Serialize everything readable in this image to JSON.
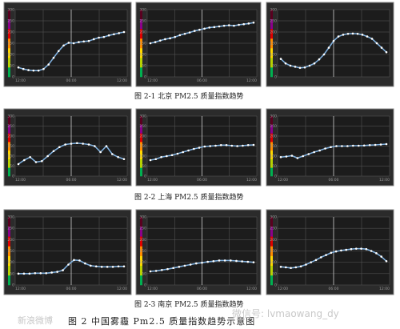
{
  "captions": {
    "row1": "图 2-1 北京 PM2.5 质量指数趋势",
    "row2": "图 2-2 上海 PM2.5 质量指数趋势",
    "row3": "图 2-3 南京 PM2.5 质量指数趋势",
    "figure": "图 2   中国雾霾 Pm2.5 质量指数趋势示意图"
  },
  "watermarks": {
    "left": "新浪微博",
    "right": "微信号: lvmaowang_dy"
  },
  "colors": {
    "line": "#7fb0de",
    "dot": "#ffffff",
    "aqi_scale": [
      "#00b050",
      "#b8d200",
      "#ffd700",
      "#ff8c00",
      "#e00000",
      "#8b008b",
      "#5a0020"
    ]
  },
  "chart_data": [
    {
      "type": "line",
      "city": "北京",
      "panel": "2-1a",
      "ylim": [
        0,
        300
      ],
      "ylabel": "",
      "y_ticks": [
        "300",
        "250",
        "200",
        "150",
        "100",
        "50",
        "0"
      ],
      "x_ticks": [
        "12:00",
        "",
        "06:00",
        "",
        "12:00"
      ],
      "values": [
        42,
        35,
        30,
        28,
        28,
        35,
        55,
        85,
        115,
        140,
        152,
        150,
        155,
        158,
        160,
        168,
        175,
        178,
        185,
        190,
        195,
        200
      ]
    },
    {
      "type": "line",
      "city": "北京",
      "panel": "2-1b",
      "ylim": [
        0,
        300
      ],
      "ylabel": "",
      "y_ticks": [
        "300",
        "250",
        "200",
        "150",
        "100",
        "50",
        "0"
      ],
      "x_ticks": [
        "12:00",
        "",
        "06:00",
        "",
        "12:00"
      ],
      "values": [
        150,
        155,
        162,
        168,
        172,
        178,
        186,
        192,
        198,
        205,
        210,
        215,
        220,
        222,
        225,
        228,
        230,
        228,
        232,
        235,
        238,
        242
      ]
    },
    {
      "type": "line",
      "city": "北京",
      "panel": "2-1c",
      "ylim": [
        0,
        300
      ],
      "ylabel": "",
      "y_ticks": [
        "300",
        "250",
        "200",
        "150",
        "100",
        "50",
        "0"
      ],
      "x_ticks": [
        "",
        "",
        "",
        "",
        ""
      ],
      "values": [
        80,
        60,
        50,
        45,
        40,
        42,
        50,
        60,
        78,
        100,
        130,
        160,
        180,
        188,
        192,
        193,
        192,
        188,
        180,
        170,
        150,
        130,
        110
      ]
    },
    {
      "type": "line",
      "city": "上海",
      "panel": "2-2a",
      "ylim": [
        0,
        300
      ],
      "ylabel": "",
      "y_ticks": [
        "300",
        "250",
        "200",
        "150",
        "100",
        "50",
        "0"
      ],
      "x_ticks": [
        "12:00",
        "",
        "06:00",
        "",
        "12:00"
      ],
      "values": [
        60,
        80,
        95,
        70,
        75,
        100,
        125,
        145,
        158,
        162,
        165,
        162,
        158,
        150,
        120,
        150,
        110,
        95,
        85
      ]
    },
    {
      "type": "line",
      "city": "上海",
      "panel": "2-2b",
      "ylim": [
        0,
        300
      ],
      "ylabel": "",
      "y_ticks": [
        "300",
        "250",
        "200",
        "150",
        "100",
        "50",
        "0"
      ],
      "x_ticks": [
        "12:00",
        "",
        "06:00",
        "",
        "12:00"
      ],
      "values": [
        80,
        85,
        95,
        100,
        105,
        112,
        120,
        128,
        136,
        142,
        148,
        150,
        152,
        155,
        155,
        152,
        150,
        152,
        155,
        156
      ]
    },
    {
      "type": "line",
      "city": "上海",
      "panel": "2-2c",
      "ylim": [
        0,
        300
      ],
      "ylabel": "",
      "y_ticks": [
        "300",
        "250",
        "200",
        "150",
        "100",
        "50",
        "0"
      ],
      "x_ticks": [
        "12:00",
        "",
        "06:00",
        "",
        "12:00"
      ],
      "values": [
        95,
        98,
        102,
        90,
        100,
        110,
        120,
        128,
        138,
        145,
        150,
        150,
        150,
        152,
        152,
        153,
        155,
        156,
        158,
        160
      ]
    },
    {
      "type": "line",
      "city": "南京",
      "panel": "2-3a",
      "ylim": [
        0,
        300
      ],
      "ylabel": "",
      "y_ticks": [
        "300",
        "250",
        "200",
        "150",
        "100",
        "50",
        "0"
      ],
      "x_ticks": [
        "12:00",
        "",
        "06:00",
        "",
        "12:00"
      ],
      "values": [
        50,
        50,
        50,
        52,
        52,
        52,
        55,
        58,
        65,
        90,
        110,
        108,
        95,
        85,
        82,
        80,
        80,
        80,
        82,
        82
      ]
    },
    {
      "type": "line",
      "city": "南京",
      "panel": "2-3b",
      "ylim": [
        0,
        300
      ],
      "ylabel": "",
      "y_ticks": [
        "300",
        "250",
        "200",
        "150",
        "100",
        "50",
        "0"
      ],
      "x_ticks": [
        "12:00",
        "",
        "06:00",
        "",
        "12:00"
      ],
      "values": [
        60,
        62,
        66,
        70,
        75,
        80,
        85,
        90,
        95,
        98,
        102,
        105,
        108,
        108,
        108,
        106,
        104,
        102,
        100
      ]
    },
    {
      "type": "line",
      "city": "南京",
      "panel": "2-3c",
      "ylim": [
        0,
        300
      ],
      "ylabel": "",
      "y_ticks": [
        "300",
        "250",
        "200",
        "150",
        "100",
        "50",
        "0"
      ],
      "x_ticks": [
        "12:00",
        "",
        "06:00",
        "",
        "12:00"
      ],
      "values": [
        80,
        78,
        75,
        78,
        82,
        90,
        100,
        110,
        122,
        132,
        142,
        148,
        152,
        155,
        158,
        160,
        160,
        158,
        150,
        140,
        125,
        105
      ]
    }
  ]
}
